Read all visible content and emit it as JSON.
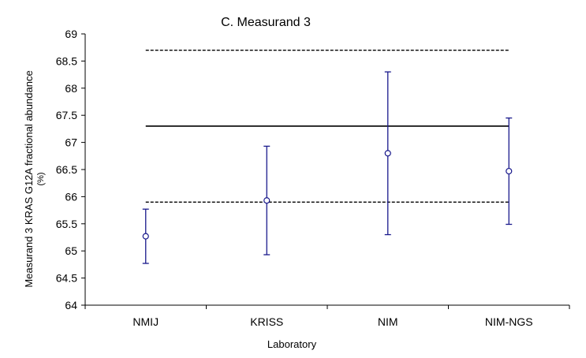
{
  "chart_data": {
    "type": "scatter",
    "title": "C. Measurand 3",
    "xlabel": "Laboratory",
    "ylabel_line1": "Measurand 3 KRAS G12A fractional abundance",
    "ylabel_line2": "(%)",
    "ylim": [
      64,
      69
    ],
    "yticks": [
      {
        "value": 64,
        "label": "64"
      },
      {
        "value": 64.5,
        "label": "64.5"
      },
      {
        "value": 65,
        "label": "65"
      },
      {
        "value": 65.5,
        "label": "65.5"
      },
      {
        "value": 66,
        "label": "66"
      },
      {
        "value": 66.5,
        "label": "66.5"
      },
      {
        "value": 67,
        "label": "67"
      },
      {
        "value": 67.5,
        "label": "67.5"
      },
      {
        "value": 68,
        "label": "68"
      },
      {
        "value": 68.5,
        "label": "68.5"
      },
      {
        "value": 69,
        "label": "69"
      }
    ],
    "categories": [
      "NMIJ",
      "KRISS",
      "NIM",
      "NIM-NGS"
    ],
    "values": [
      65.27,
      65.93,
      66.8,
      66.47
    ],
    "error_low": [
      64.77,
      64.93,
      65.3,
      65.49
    ],
    "error_high": [
      65.77,
      66.93,
      68.3,
      67.45
    ],
    "reference_value": 67.3,
    "reference_lower": 65.9,
    "reference_upper": 68.7,
    "colors": {
      "points": "#1a1a8c",
      "reference": "#000000",
      "axis": "#000000"
    }
  }
}
